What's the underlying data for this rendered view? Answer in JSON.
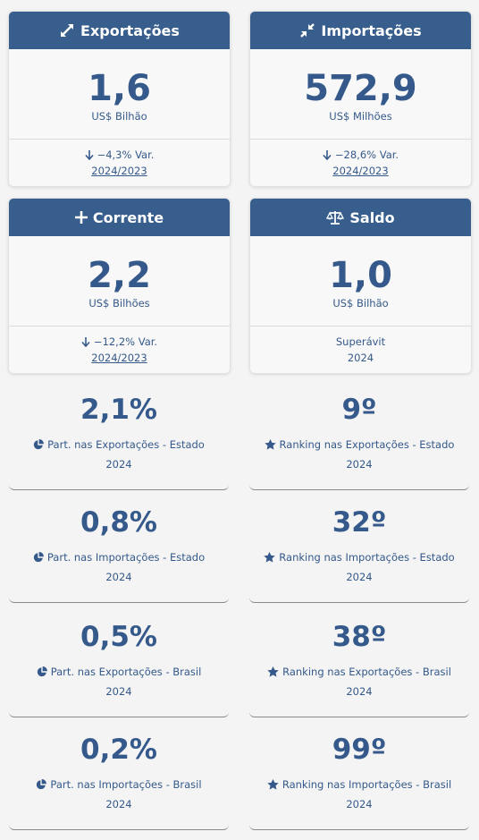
{
  "cards": [
    {
      "title": "Exportações",
      "icon": "expand-arrows-icon",
      "value": "1,6",
      "unit": "US$ Bilhão",
      "variation": "−4,3% Var.",
      "period": "2024/2023"
    },
    {
      "title": "Importações",
      "icon": "compress-arrows-icon",
      "value": "572,9",
      "unit": "US$ Milhões",
      "variation": "−28,6% Var.",
      "period": "2024/2023"
    },
    {
      "title": "Corrente",
      "icon": "plus-icon",
      "value": "2,2",
      "unit": "US$ Bilhões",
      "variation": "−12,2% Var.",
      "period": "2024/2023"
    },
    {
      "title": "Saldo",
      "icon": "balance-scale-icon",
      "value": "1,0",
      "unit": "US$ Bilhão",
      "status": "Superávit",
      "year": "2024"
    }
  ],
  "stats": [
    {
      "value": "2,1%",
      "label": "Part. nas Exportações - Estado",
      "icon": "pie-chart-icon",
      "year": "2024"
    },
    {
      "value": "9º",
      "label": "Ranking nas Exportações - Estado",
      "icon": "star-icon",
      "year": "2024"
    },
    {
      "value": "0,8%",
      "label": "Part. nas Importações - Estado",
      "icon": "pie-chart-icon",
      "year": "2024"
    },
    {
      "value": "32º",
      "label": "Ranking nas Importações - Estado",
      "icon": "star-icon",
      "year": "2024"
    },
    {
      "value": "0,5%",
      "label": "Part. nas Exportações - Brasil",
      "icon": "pie-chart-icon",
      "year": "2024"
    },
    {
      "value": "38º",
      "label": "Ranking nas Exportações - Brasil",
      "icon": "star-icon",
      "year": "2024"
    },
    {
      "value": "0,2%",
      "label": "Part. nas Importações - Brasil",
      "icon": "pie-chart-icon",
      "year": "2024"
    },
    {
      "value": "99º",
      "label": "Ranking nas Importações - Brasil",
      "icon": "star-icon",
      "year": "2024"
    }
  ],
  "colors": {
    "header": "#375e8c",
    "text": "#34598a",
    "background": "#f4f4f4"
  }
}
